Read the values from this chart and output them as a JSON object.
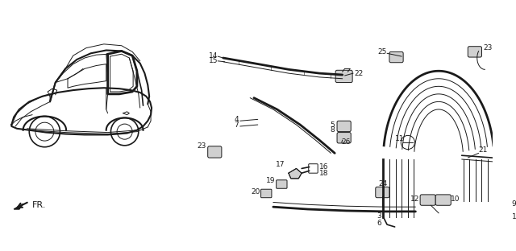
{
  "bg_color": "#ffffff",
  "line_color": "#1a1a1a",
  "fig_width": 6.4,
  "fig_height": 3.12,
  "dpi": 100
}
